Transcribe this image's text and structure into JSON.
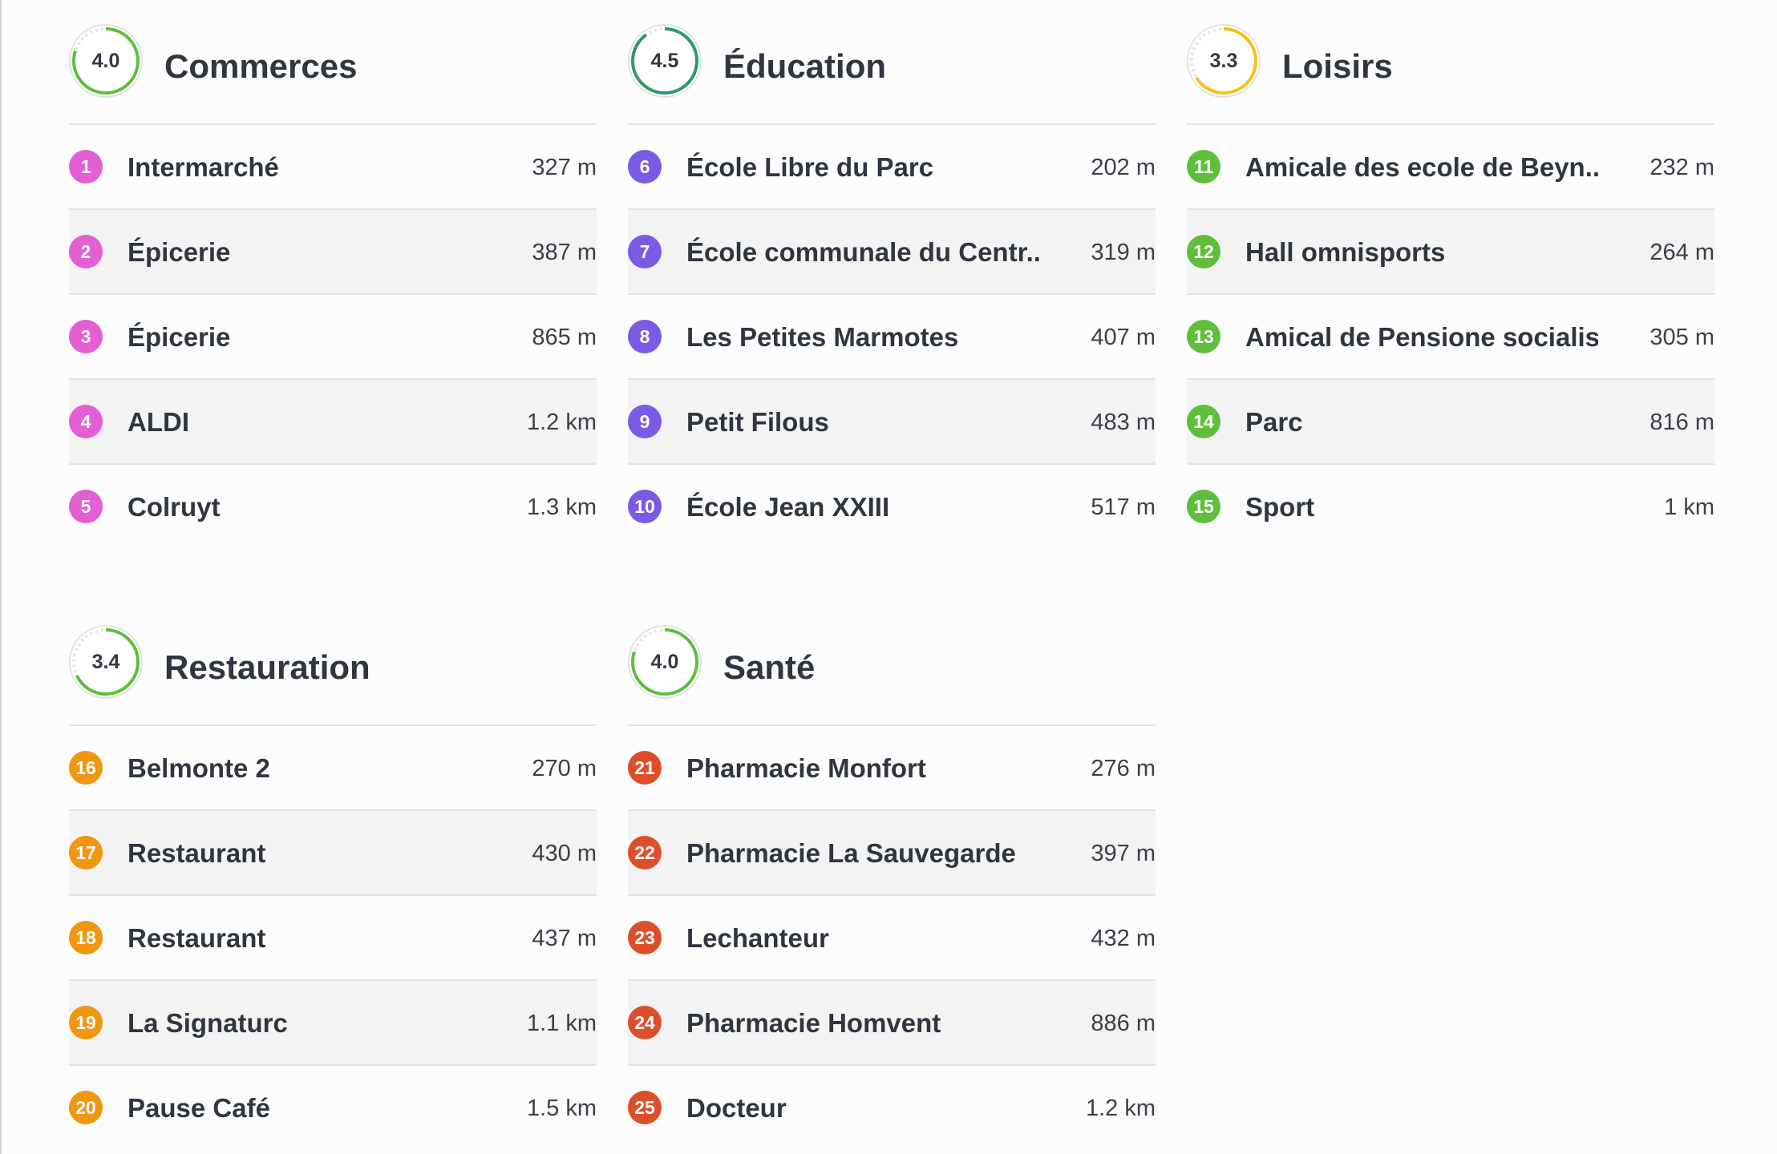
{
  "categories": [
    {
      "title": "Commerces",
      "score": "4.0",
      "score_fraction": 0.8,
      "ring_color": "#5bbf3a",
      "badge_color": "#e35fd3",
      "items": [
        {
          "num": "1",
          "name": "Intermarché",
          "distance": "327 m"
        },
        {
          "num": "2",
          "name": "Épicerie",
          "distance": "387 m"
        },
        {
          "num": "3",
          "name": "Épicerie",
          "distance": "865 m"
        },
        {
          "num": "4",
          "name": "ALDI",
          "distance": "1.2 km"
        },
        {
          "num": "5",
          "name": "Colruyt",
          "distance": "1.3 km"
        }
      ]
    },
    {
      "title": "Éducation",
      "score": "4.5",
      "score_fraction": 0.9,
      "ring_color": "#2a9a6a",
      "badge_color": "#7b5ae6",
      "items": [
        {
          "num": "6",
          "name": "École Libre du Parc",
          "distance": "202 m"
        },
        {
          "num": "7",
          "name": "École communale du Centr...",
          "distance": "319 m"
        },
        {
          "num": "8",
          "name": "Les Petites Marmotes",
          "distance": "407 m"
        },
        {
          "num": "9",
          "name": "Petit Filous",
          "distance": "483 m"
        },
        {
          "num": "10",
          "name": "École Jean XXIII",
          "distance": "517 m"
        }
      ]
    },
    {
      "title": "Loisirs",
      "score": "3.3",
      "score_fraction": 0.66,
      "ring_color": "#f2c21b",
      "badge_color": "#5fbf3a",
      "items": [
        {
          "num": "11",
          "name": "Amicale des ecole de Beyn...",
          "distance": "232 m"
        },
        {
          "num": "12",
          "name": "Hall omnisports",
          "distance": "264 m"
        },
        {
          "num": "13",
          "name": "Amical de Pensione socialist",
          "distance": "305 m"
        },
        {
          "num": "14",
          "name": "Parc",
          "distance": "816 m"
        },
        {
          "num": "15",
          "name": "Sport",
          "distance": "1 km"
        }
      ]
    },
    {
      "title": "Restauration",
      "score": "3.4",
      "score_fraction": 0.68,
      "ring_color": "#5bbf3a",
      "badge_color": "#f0960f",
      "items": [
        {
          "num": "16",
          "name": "Belmonte 2",
          "distance": "270 m"
        },
        {
          "num": "17",
          "name": "Restaurant",
          "distance": "430 m"
        },
        {
          "num": "18",
          "name": "Restaurant",
          "distance": "437 m"
        },
        {
          "num": "19",
          "name": "La Signaturc",
          "distance": "1.1 km"
        },
        {
          "num": "20",
          "name": "Pause Café",
          "distance": "1.5 km"
        }
      ]
    },
    {
      "title": "Santé",
      "score": "4.0",
      "score_fraction": 0.8,
      "ring_color": "#5bbf3a",
      "badge_color": "#dd4f2a",
      "items": [
        {
          "num": "21",
          "name": "Pharmacie Monfort",
          "distance": "276 m"
        },
        {
          "num": "22",
          "name": "Pharmacie La Sauvegarde",
          "distance": "397 m"
        },
        {
          "num": "23",
          "name": "Lechanteur",
          "distance": "432 m"
        },
        {
          "num": "24",
          "name": "Pharmacie Homvent",
          "distance": "886 m"
        },
        {
          "num": "25",
          "name": "Docteur",
          "distance": "1.2 km"
        }
      ]
    }
  ]
}
